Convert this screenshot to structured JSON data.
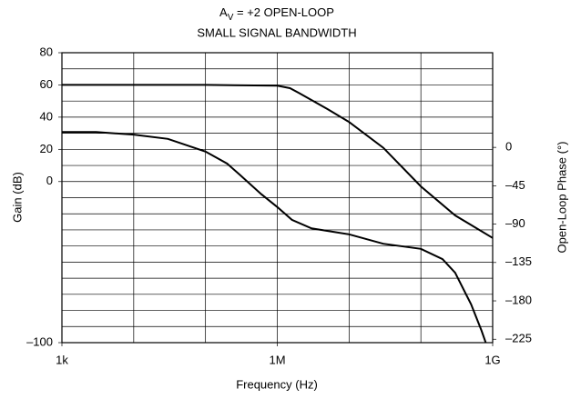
{
  "chart_data": {
    "type": "line",
    "title": {
      "symbol": "A",
      "subscript": "V",
      "rest": " = +2 OPEN-LOOP"
    },
    "subtitle": "SMALL SIGNAL BANDWIDTH",
    "x_label": "Frequency (Hz)",
    "y_label": "Gain (dB)",
    "y2_label": "Open-Loop Phase (°)",
    "x_scale": "log",
    "xlim": [
      1000,
      1000000000
    ],
    "xticks": [
      {
        "value": 1000,
        "label": "1k"
      },
      {
        "value": 1000000,
        "label": "1M"
      },
      {
        "value": 1000000000,
        "label": "1G"
      }
    ],
    "xgrid": [
      10000,
      100000,
      1000000,
      10000000,
      100000000
    ],
    "ylim": [
      -100,
      80
    ],
    "yticks": [
      80,
      60,
      40,
      20,
      0,
      {
        "value": -100,
        "label": "–100"
      }
    ],
    "ygrid": [
      70,
      60,
      50,
      40,
      30,
      20,
      10,
      0,
      -10,
      -20,
      -30,
      -40,
      -50,
      -60,
      -70,
      -80,
      -90
    ],
    "y2lim": [
      -229,
      111
    ],
    "y2ticks": [
      0,
      {
        "value": -45,
        "label": "–45"
      },
      {
        "value": -90,
        "label": "–90"
      },
      {
        "value": -135,
        "label": "–135"
      },
      {
        "value": -180,
        "label": "–180"
      },
      {
        "value": -225,
        "label": "–225"
      }
    ],
    "grid": true,
    "series": [
      {
        "name": "Gain",
        "color": "#000000",
        "x": [
          1000,
          10000,
          100000,
          1000000,
          1500000,
          2000000,
          5000000,
          10000000,
          30000000,
          100000000,
          300000000,
          1000000000
        ],
        "values": [
          60,
          60,
          60,
          59.5,
          58,
          55,
          45,
          37,
          21,
          -3,
          -21,
          -35
        ]
      },
      {
        "name": "Phase",
        "color": "#000000",
        "axis": "y2",
        "x": [
          1000,
          3000,
          10000,
          30000,
          100000,
          200000,
          300000,
          600000,
          1000000,
          1600000,
          3000000,
          10000000,
          30000000,
          100000000,
          200000000,
          300000000,
          500000000,
          700000000,
          800000000
        ],
        "values": [
          18,
          18,
          15,
          10,
          -5,
          -19,
          -32,
          -55,
          -70,
          -85,
          -95,
          -102,
          -113,
          -119,
          -131,
          -147,
          -184,
          -215,
          -229
        ]
      }
    ]
  }
}
